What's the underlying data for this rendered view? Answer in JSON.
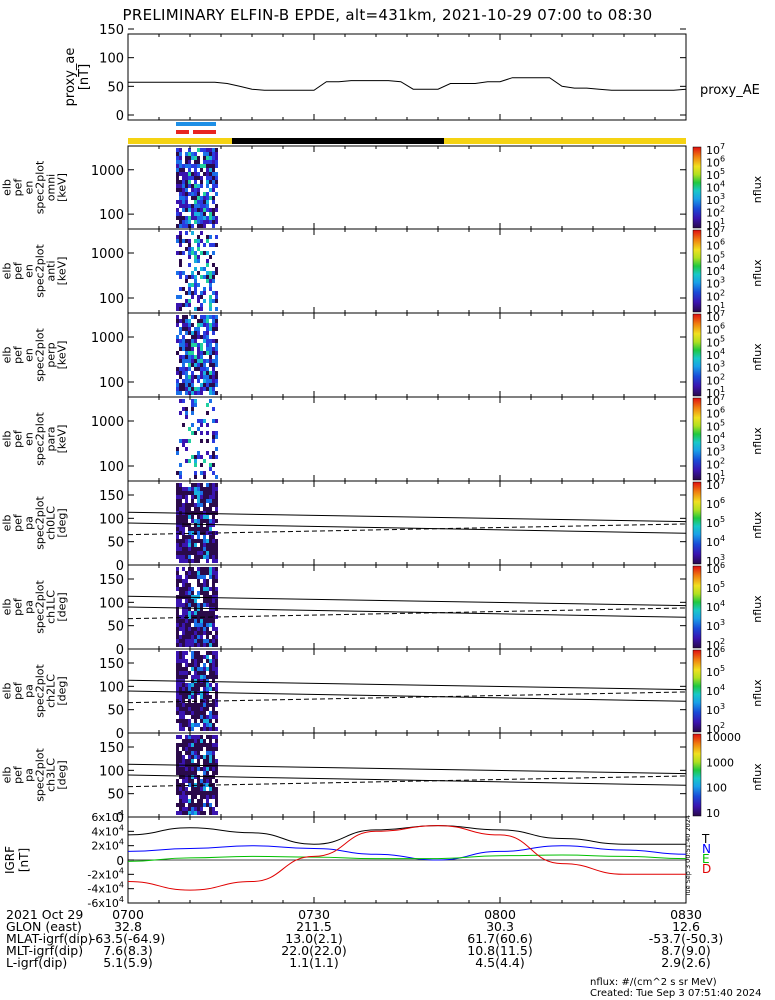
{
  "title": "PRELIMINARY ELFIN-B EPDE, alt=431km, 2021-10-29 07:00 to 08:30",
  "colors": {
    "sunlight_bar": "#f5d312",
    "shadow_bar": "#000000",
    "fast_marker_blue": "#1e8fe6",
    "fast_marker_red": "#e8251f",
    "component_T": "#000000",
    "component_N": "#0000ff",
    "component_E": "#00c000",
    "component_D": "#e00000"
  },
  "colorbar_units": "nflux",
  "panel_labels": {
    "ae": [
      "proxy_ae",
      "[nT]"
    ],
    "omni": [
      "elb",
      "pef",
      "en",
      "spec2plot",
      "omni",
      "[keV]"
    ],
    "anti": [
      "elb",
      "pef",
      "en",
      "spec2plot",
      "anti",
      "[keV]"
    ],
    "perp": [
      "elb",
      "pef",
      "en",
      "spec2plot",
      "perp",
      "[keV]"
    ],
    "para": [
      "elb",
      "pef",
      "en",
      "spec2plot",
      "para",
      "[keV]"
    ],
    "ch0": [
      "elb",
      "pef",
      "pa",
      "spec2plot",
      "ch0LC",
      "[deg]"
    ],
    "ch1": [
      "elb",
      "pef",
      "pa",
      "spec2plot",
      "ch1LC",
      "[deg]"
    ],
    "ch2": [
      "elb",
      "pef",
      "pa",
      "spec2plot",
      "ch2LC",
      "[deg]"
    ],
    "ch3": [
      "elb",
      "pef",
      "pa",
      "spec2plot",
      "ch3LC",
      "[deg]"
    ],
    "igrf": [
      "IGRF",
      "[nT]"
    ]
  },
  "chart_data": [
    {
      "type": "line",
      "panel": "proxy_ae",
      "series": [
        {
          "name": "proxy_AE",
          "x": [
            "07:00",
            "07:02",
            "07:04",
            "07:06",
            "07:08",
            "07:10",
            "07:12",
            "07:14",
            "07:16",
            "07:18",
            "07:20",
            "07:22",
            "07:24",
            "07:26",
            "07:28",
            "07:30",
            "07:32",
            "07:34",
            "07:36",
            "07:38",
            "07:40",
            "07:42",
            "07:44",
            "07:46",
            "07:48",
            "07:50",
            "07:52",
            "07:54",
            "07:56",
            "07:58",
            "08:00",
            "08:02",
            "08:04",
            "08:06",
            "08:08",
            "08:10",
            "08:12",
            "08:14",
            "08:16",
            "08:18",
            "08:20",
            "08:22",
            "08:24",
            "08:26",
            "08:28",
            "08:30"
          ],
          "values": [
            57,
            57,
            57,
            57,
            57,
            57,
            57,
            57,
            55,
            50,
            45,
            43,
            43,
            43,
            43,
            43,
            58,
            58,
            60,
            60,
            60,
            60,
            58,
            45,
            45,
            45,
            55,
            55,
            55,
            58,
            58,
            65,
            65,
            65,
            65,
            50,
            47,
            47,
            45,
            43,
            43,
            43,
            43,
            43,
            43,
            45
          ]
        }
      ],
      "ylabel": "proxy_ae [nT]",
      "ylim": [
        0,
        150
      ],
      "yticks": [
        0,
        50,
        100,
        150
      ]
    },
    {
      "type": "heatmap",
      "panel": "elb_pef_en_spec2plot_omni",
      "ylabel": "elb pef en spec2plot omni [keV]",
      "yscale": "log",
      "yticks": [
        100,
        1000
      ],
      "colorbar": {
        "label": "nflux",
        "scale": "log",
        "ticks": [
          "10^1",
          "10^2",
          "10^3",
          "10^4",
          "10^5",
          "10^6",
          "10^7"
        ]
      },
      "active_interval": [
        "07:05",
        "07:10"
      ]
    },
    {
      "type": "heatmap",
      "panel": "elb_pef_en_spec2plot_anti",
      "ylabel": "elb pef en spec2plot anti [keV]",
      "yscale": "log",
      "yticks": [
        100,
        1000
      ],
      "colorbar": {
        "label": "nflux",
        "scale": "log",
        "ticks": [
          "10^1",
          "10^2",
          "10^3",
          "10^4",
          "10^5",
          "10^6",
          "10^7"
        ]
      },
      "active_interval": [
        "07:05",
        "07:10"
      ]
    },
    {
      "type": "heatmap",
      "panel": "elb_pef_en_spec2plot_perp",
      "ylabel": "elb pef en spec2plot perp [keV]",
      "yscale": "log",
      "yticks": [
        100,
        1000
      ],
      "colorbar": {
        "label": "nflux",
        "scale": "log",
        "ticks": [
          "10^1",
          "10^2",
          "10^3",
          "10^4",
          "10^5",
          "10^6",
          "10^7"
        ]
      },
      "active_interval": [
        "07:05",
        "07:10"
      ]
    },
    {
      "type": "heatmap",
      "panel": "elb_pef_en_spec2plot_para",
      "ylabel": "elb pef en spec2plot para [keV]",
      "yscale": "log",
      "yticks": [
        100,
        1000
      ],
      "colorbar": {
        "label": "nflux",
        "scale": "log",
        "ticks": [
          "10^1",
          "10^2",
          "10^3",
          "10^4",
          "10^5",
          "10^6",
          "10^7"
        ]
      },
      "active_interval": [
        "07:05",
        "07:10"
      ]
    },
    {
      "type": "heatmap",
      "panel": "elb_pef_pa_spec2plot_ch0LC",
      "ylabel": "elb pef pa spec2plot ch0LC [deg]",
      "ylim": [
        0,
        180
      ],
      "yticks": [
        0,
        50,
        100,
        150
      ],
      "colorbar": {
        "label": "nflux",
        "scale": "log",
        "ticks": [
          "10^3",
          "10^4",
          "10^5",
          "10^6",
          "10^7"
        ]
      },
      "lines": {
        "x": [
          "07:00",
          "08:30"
        ],
        "upper_solid": [
          113,
          93
        ],
        "lower_solid": [
          90,
          68
        ],
        "dashed": [
          65,
          88
        ]
      }
    },
    {
      "type": "heatmap",
      "panel": "elb_pef_pa_spec2plot_ch1LC",
      "ylabel": "elb pef pa spec2plot ch1LC [deg]",
      "ylim": [
        0,
        180
      ],
      "yticks": [
        0,
        50,
        100,
        150
      ],
      "colorbar": {
        "label": "nflux",
        "scale": "log",
        "ticks": [
          "10^2",
          "10^3",
          "10^4",
          "10^5",
          "10^6"
        ]
      },
      "lines": {
        "x": [
          "07:00",
          "08:30"
        ],
        "upper_solid": [
          113,
          93
        ],
        "lower_solid": [
          90,
          68
        ],
        "dashed": [
          65,
          88
        ]
      }
    },
    {
      "type": "heatmap",
      "panel": "elb_pef_pa_spec2plot_ch2LC",
      "ylabel": "elb pef pa spec2plot ch2LC [deg]",
      "ylim": [
        0,
        180
      ],
      "yticks": [
        0,
        50,
        100,
        150
      ],
      "colorbar": {
        "label": "nflux",
        "scale": "log",
        "ticks": [
          "10^2",
          "10^3",
          "10^4",
          "10^5",
          "10^6"
        ]
      },
      "lines": {
        "x": [
          "07:00",
          "08:30"
        ],
        "upper_solid": [
          113,
          93
        ],
        "lower_solid": [
          90,
          68
        ],
        "dashed": [
          65,
          88
        ]
      }
    },
    {
      "type": "heatmap",
      "panel": "elb_pef_pa_spec2plot_ch3LC",
      "ylabel": "elb pef pa spec2plot ch3LC [deg]",
      "ylim": [
        0,
        180
      ],
      "yticks": [
        0,
        50,
        100,
        150
      ],
      "colorbar": {
        "label": "nflux",
        "scale": "log",
        "ticks": [
          "10",
          "100",
          "1000",
          "10000"
        ]
      },
      "lines": {
        "x": [
          "07:00",
          "08:30"
        ],
        "upper_solid": [
          113,
          93
        ],
        "lower_solid": [
          90,
          68
        ],
        "dashed": [
          65,
          88
        ]
      }
    },
    {
      "type": "line",
      "panel": "IGRF",
      "ylabel": "IGRF [nT]",
      "ylim": [
        -60000,
        60000
      ],
      "yticks": [
        "-6x10^4",
        "-4x10^4",
        "-2x10^4",
        "0",
        "2x10^4",
        "4x10^4",
        "6x10^4"
      ],
      "x": [
        "07:00",
        "07:10",
        "07:20",
        "07:30",
        "07:40",
        "07:50",
        "08:00",
        "08:10",
        "08:20",
        "08:30"
      ],
      "series": [
        {
          "name": "T",
          "values": [
            35000,
            45000,
            38000,
            22000,
            42000,
            48000,
            42000,
            30000,
            22000,
            22000
          ]
        },
        {
          "name": "N",
          "values": [
            12000,
            16000,
            20000,
            16000,
            8000,
            0,
            12000,
            20000,
            14000,
            8000
          ]
        },
        {
          "name": "E",
          "values": [
            -2000,
            3000,
            5000,
            4000,
            2000,
            2000,
            6000,
            7000,
            5000,
            2000
          ]
        },
        {
          "name": "D",
          "values": [
            -30000,
            -42000,
            -30000,
            5000,
            40000,
            48000,
            35000,
            -5000,
            -20000,
            -20000
          ]
        }
      ]
    }
  ],
  "x_axis": {
    "ticks": [
      "0700",
      "0730",
      "0800",
      "0830"
    ]
  },
  "footer": {
    "rows": [
      {
        "label": "2021 Oct 29",
        "values": [
          "0700",
          "0730",
          "0800",
          "0830"
        ]
      },
      {
        "label": "GLON (east)",
        "values": [
          "32.8",
          "211.5",
          "30.3",
          "12.6"
        ]
      },
      {
        "label": "MLAT-igrf(dip)",
        "values": [
          "-63.5(-64.9)",
          "13.0(2.1)",
          "61.7(60.6)",
          "-53.7(-50.3)"
        ]
      },
      {
        "label": "MLT-igrf(dip)",
        "values": [
          "7.6(8.3)",
          "22.0(22.0)",
          "10.8(11.5)",
          "8.7(9.0)"
        ]
      },
      {
        "label": "L-igrf(dip)",
        "values": [
          "5.1(5.9)",
          "1.1(1.1)",
          "4.5(4.4)",
          "2.9(2.6)"
        ]
      }
    ],
    "units_note": "nflux: #/(cm^2 s sr MeV)",
    "created": "Created: Tue Sep  3 07:51:40 2024",
    "stamp": "Tue Sep  3 00:51:40 2024"
  }
}
